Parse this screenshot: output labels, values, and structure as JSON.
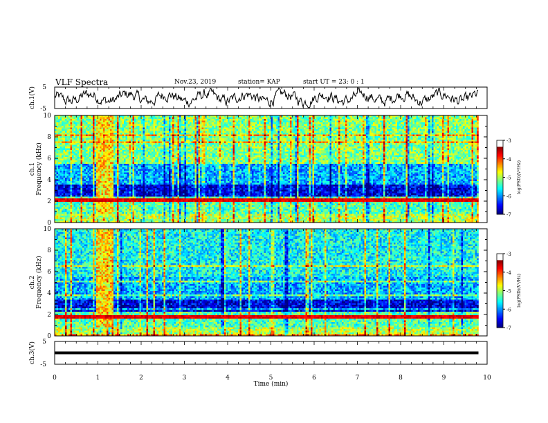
{
  "header": {
    "title": "VLF Spectra",
    "date": "Nov.23, 2019",
    "station": "station= KAP",
    "start": "start  UT =  23: 0  : 1"
  },
  "chart_data": [
    {
      "type": "line",
      "panel": "ch1",
      "ylabel": "ch.1(V)",
      "ytick_labels": [
        "5",
        "-5"
      ],
      "ylim": [
        -5,
        5
      ],
      "xlim": [
        0,
        10
      ],
      "x_units": "min",
      "data_extent_x": [
        0,
        9.8
      ],
      "series": [
        {
          "values_description_level": 0.0,
          "amplitude": 2.5
        }
      ]
    },
    {
      "type": "heatmap",
      "panel": "ch1-spectrogram",
      "ylabel_lines": [
        "ch.1",
        "Frequency (kHz)"
      ],
      "ytick_labels": [
        "0",
        "2",
        "4",
        "6",
        "8",
        "10"
      ],
      "ylim": [
        0,
        10
      ],
      "xlim": [
        0,
        10
      ],
      "data_extent_x": [
        0,
        9.8
      ],
      "colorbar": {
        "label": "log(PSD)(V²/Hz)",
        "tick_labels": [
          "-3",
          "-4",
          "-5",
          "-6",
          "-7"
        ],
        "range": [
          -7,
          -3
        ],
        "colors": [
          "#000090",
          "#0000ff",
          "#00ffff",
          "#00ff00",
          "#ffff00",
          "#ff0000",
          "#ffffff"
        ]
      },
      "features": {
        "quiet_band_khz": [
          2.5,
          3.5
        ],
        "strong_line_khz": 2.1,
        "burst_interval_min": [
          0.95,
          1.35
        ]
      }
    },
    {
      "type": "heatmap",
      "panel": "ch2-spectrogram",
      "ylabel_lines": [
        "ch.2",
        "Frequency (kHz)"
      ],
      "ytick_labels": [
        "0",
        "2",
        "4",
        "6",
        "8",
        "10"
      ],
      "ylim": [
        0,
        10
      ],
      "xlim": [
        0,
        10
      ],
      "data_extent_x": [
        0,
        9.8
      ],
      "colorbar": {
        "label": "log(PSD)(V²/Hz)",
        "tick_labels": [
          "-3",
          "-4",
          "-5",
          "-6",
          "-7"
        ],
        "range": [
          -7,
          -3
        ],
        "colors": [
          "#000090",
          "#0000ff",
          "#00ffff",
          "#00ff00",
          "#ffff00",
          "#ff0000",
          "#ffffff"
        ]
      },
      "features": {
        "quiet_band_khz": [
          2.2,
          3.4
        ],
        "strong_line_khz": 1.8,
        "burst_interval_min": [
          0.95,
          1.35
        ]
      }
    },
    {
      "type": "line",
      "panel": "ch3",
      "ylabel": "ch.3(V)",
      "ytick_labels": [
        "5",
        "-5"
      ],
      "ylim": [
        -5,
        5
      ],
      "xlim": [
        0,
        10
      ],
      "data_extent_x": [
        0,
        9.8
      ],
      "series": [
        {
          "constant_level": 0.0
        }
      ]
    }
  ],
  "xaxis": {
    "label": "Time  (min)",
    "tick_labels": [
      "0",
      "1",
      "2",
      "3",
      "4",
      "5",
      "6",
      "7",
      "8",
      "9",
      "10"
    ]
  }
}
